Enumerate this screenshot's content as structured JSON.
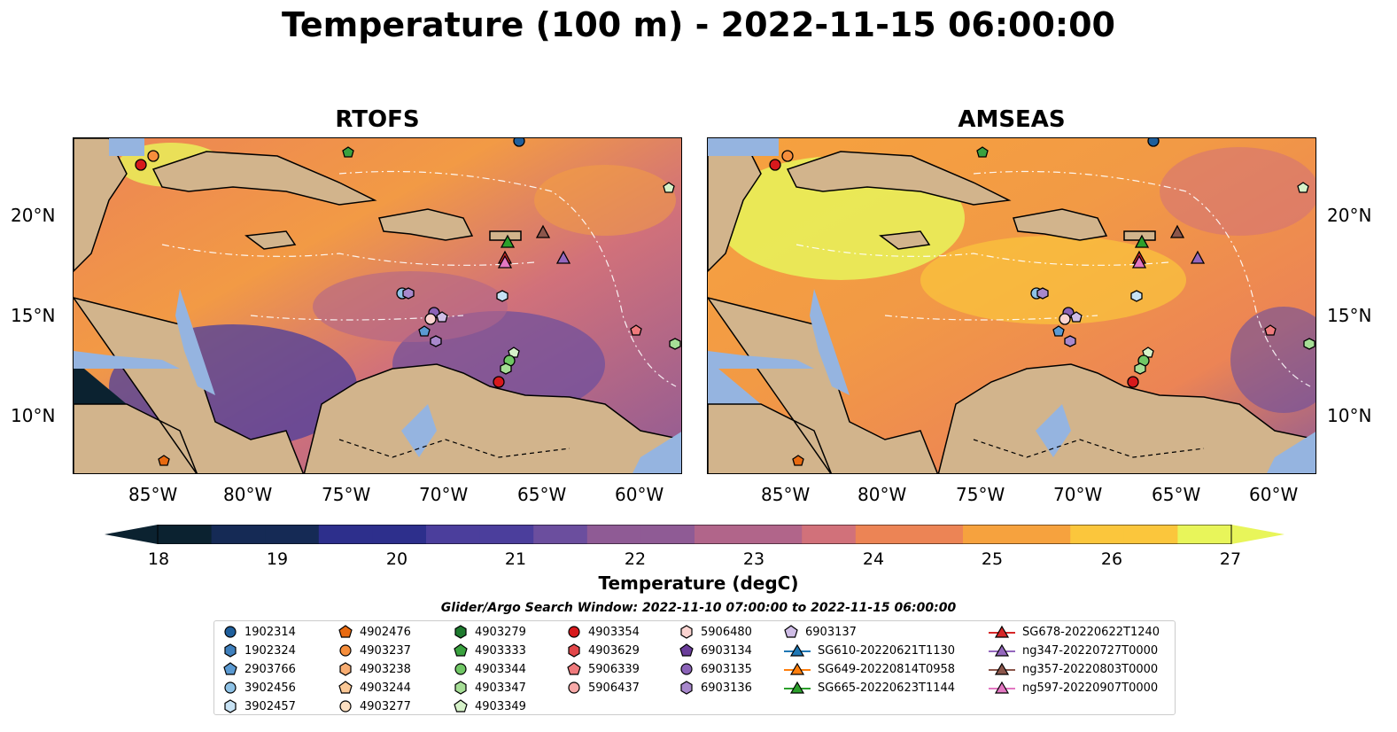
{
  "title": "Temperature (100 m) - 2022-11-15 06:00:00",
  "panels": [
    {
      "title": "RTOFS"
    },
    {
      "title": "AMSEAS"
    }
  ],
  "axes": {
    "lon_ticks": [
      "85°W",
      "80°W",
      "75°W",
      "70°W",
      "65°W",
      "60°W"
    ],
    "lat_ticks": [
      "20°N",
      "15°N",
      "10°N"
    ]
  },
  "colors": {
    "land": "#d2b48c",
    "shallow_water": "#95b4e0",
    "colormap": [
      "#0b2230",
      "#152a55",
      "#2d2f8c",
      "#4b3e9c",
      "#6b4e9e",
      "#8f5b95",
      "#b1658a",
      "#d1717a",
      "#ec8455",
      "#f6a23e",
      "#fbc63c",
      "#e8f55a"
    ]
  },
  "colorbar": {
    "ticks": [
      "18",
      "19",
      "20",
      "21",
      "22",
      "23",
      "24",
      "25",
      "26",
      "27"
    ],
    "label": "Temperature (degC)"
  },
  "legend": {
    "title": "Glider/Argo Search Window: 2022-11-10 07:00:00 to 2022-11-15 06:00:00",
    "columns": [
      [
        {
          "label": "1902314",
          "marker": "circle",
          "color": "#1f5f9c"
        },
        {
          "label": "1902324",
          "marker": "hexagon",
          "color": "#3f80bd"
        },
        {
          "label": "2903766",
          "marker": "pentagon",
          "color": "#5b9ad2"
        },
        {
          "label": "3902456",
          "marker": "circle",
          "color": "#8ec2e6"
        },
        {
          "label": "3902457",
          "marker": "hexagon",
          "color": "#c7e2f4"
        }
      ],
      [
        {
          "label": "4902476",
          "marker": "pentagon",
          "color": "#e86a10"
        },
        {
          "label": "4903237",
          "marker": "circle",
          "color": "#f68e3c"
        },
        {
          "label": "4903238",
          "marker": "hexagon",
          "color": "#f8ad72"
        },
        {
          "label": "4903244",
          "marker": "pentagon",
          "color": "#fbc896"
        },
        {
          "label": "4903277",
          "marker": "circle",
          "color": "#fde0c2"
        }
      ],
      [
        {
          "label": "4903279",
          "marker": "hexagon",
          "color": "#1e7a2e"
        },
        {
          "label": "4903333",
          "marker": "pentagon",
          "color": "#3aa23f"
        },
        {
          "label": "4903344",
          "marker": "circle",
          "color": "#70c765"
        },
        {
          "label": "4903347",
          "marker": "hexagon",
          "color": "#a6de96"
        },
        {
          "label": "4903349",
          "marker": "pentagon",
          "color": "#d6f2c9"
        }
      ],
      [
        {
          "label": "4903354",
          "marker": "circle",
          "color": "#d7191c"
        },
        {
          "label": "4903629",
          "marker": "hexagon",
          "color": "#e2474a"
        },
        {
          "label": "5906339",
          "marker": "pentagon",
          "color": "#ef7a7c"
        },
        {
          "label": "5906437",
          "marker": "circle",
          "color": "#f7a9a8"
        }
      ],
      [
        {
          "label": "5906480",
          "marker": "hexagon",
          "color": "#fbd4d1"
        },
        {
          "label": "6903134",
          "marker": "pentagon",
          "color": "#6a3d9a"
        },
        {
          "label": "6903135",
          "marker": "circle",
          "color": "#8b63b8"
        },
        {
          "label": "6903136",
          "marker": "hexagon",
          "color": "#a888cc"
        }
      ],
      [
        {
          "label": "6903137",
          "marker": "pentagon",
          "color": "#cfbde6"
        },
        {
          "label": "SG610-20220621T1130",
          "marker": "triangle-line",
          "color": "#1f77b4"
        },
        {
          "label": "SG649-20220814T0958",
          "marker": "triangle-line",
          "color": "#ff7f0e"
        },
        {
          "label": "SG665-20220623T1144",
          "marker": "triangle-line",
          "color": "#2ca02c"
        }
      ],
      [
        {
          "label": "SG678-20220622T1240",
          "marker": "triangle-line",
          "color": "#d62728"
        },
        {
          "label": "ng347-20220727T0000",
          "marker": "triangle-line",
          "color": "#9467bd"
        },
        {
          "label": "ng357-20220803T0000",
          "marker": "triangle-line",
          "color": "#8c564b"
        },
        {
          "label": "ng597-20220907T0000",
          "marker": "triangle-line",
          "color": "#e377c2"
        }
      ]
    ]
  }
}
